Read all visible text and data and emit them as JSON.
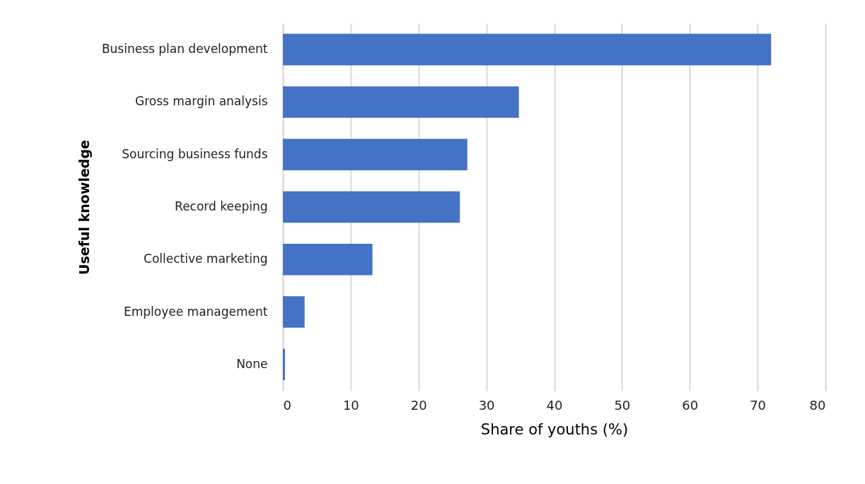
{
  "chart_data": {
    "type": "bar",
    "orientation": "horizontal",
    "xlabel": "Share of youths (%)",
    "ylabel": "Useful knowledge",
    "categories": [
      "Business plan development",
      "Gross margin analysis",
      "Sourcing business funds",
      "Record keeping",
      "Collective marketing",
      "Employee management",
      "None"
    ],
    "values": [
      72.0,
      34.8,
      27.2,
      26.1,
      13.2,
      3.2,
      0.3
    ],
    "color": "#4472c4",
    "xlim": [
      0,
      80
    ],
    "xticks": [
      0,
      10,
      20,
      30,
      40,
      50,
      60,
      70,
      80
    ],
    "grid": "x"
  }
}
